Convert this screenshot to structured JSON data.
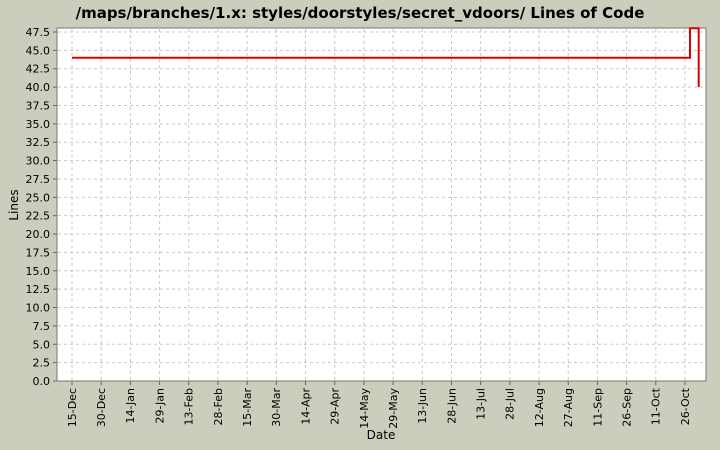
{
  "colors": {
    "background": "#cccdbc",
    "plot_background": "#ffffff",
    "plot_border": "#777777",
    "grid": "#c8c8c8",
    "tick": "#666666",
    "series_line": "#dd0000",
    "text": "#000000"
  },
  "chart_data": {
    "type": "line",
    "title": "/maps/branches/1.x: styles/doorstyles/secret_vdoors/ Lines of Code",
    "xlabel": "Date",
    "ylabel": "Lines",
    "x_tick_labels": [
      "15-Dec",
      "30-Dec",
      "14-Jan",
      "29-Jan",
      "13-Feb",
      "28-Feb",
      "15-Mar",
      "30-Mar",
      "14-Apr",
      "29-Apr",
      "14-May",
      "29-May",
      "13-Jun",
      "28-Jun",
      "13-Jul",
      "28-Jul",
      "12-Aug",
      "27-Aug",
      "11-Sep",
      "26-Sep",
      "11-Oct",
      "26-Oct"
    ],
    "y_tick_labels": [
      "0.0",
      "2.5",
      "5.0",
      "7.5",
      "10.0",
      "12.5",
      "15.0",
      "17.5",
      "20.0",
      "22.5",
      "25.0",
      "27.5",
      "30.0",
      "32.5",
      "35.0",
      "37.5",
      "40.0",
      "42.5",
      "45.0",
      "47.5"
    ],
    "ylim": [
      0,
      48
    ],
    "grid": true,
    "legend_position": "none",
    "series": [
      {
        "name": "Lines of Code",
        "color": "#dd0000",
        "points": [
          {
            "t": 0,
            "v": 44
          },
          {
            "t": 21.17,
            "v": 44
          },
          {
            "t": 21.17,
            "v": 48
          },
          {
            "t": 21.47,
            "v": 48
          },
          {
            "t": 21.47,
            "v": 40
          }
        ]
      }
    ],
    "summary": {
      "constant_value": 44,
      "peak_value": 48,
      "final_value": 40,
      "note": "44 lines of code from 15-Dec through late October, brief rise to 48, then drop to 40 at the end of the period"
    }
  }
}
